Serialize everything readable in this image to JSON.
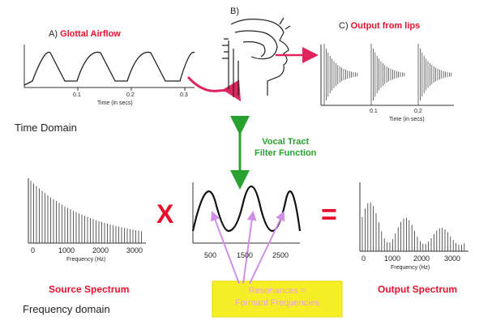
{
  "panel_a": {
    "letter": "A)",
    "title": "Glottal Airflow",
    "ticks": [
      "0.1",
      "0.2",
      "0.3"
    ],
    "xlabel": "Time (in secs)"
  },
  "panel_b": {
    "letter": "B)"
  },
  "panel_c": {
    "letter": "C)",
    "title": "Output from lips",
    "ticks": [
      "0.1",
      "0.2"
    ],
    "xlabel": "Time (in secs)"
  },
  "labels": {
    "time_domain": "Time Domain",
    "frequency_domain": "Frequency domain",
    "filter_line1": "Vocal Tract",
    "filter_line2": "Filter Function",
    "multiply": "X",
    "equals": "=",
    "source_spectrum": "Source Spectrum",
    "output_spectrum": "Output Spectrum"
  },
  "source_plot": {
    "ticks": [
      "0",
      "1000",
      "2000",
      "3000"
    ],
    "xlabel": "Frequency (Hz)"
  },
  "filter_plot": {
    "ticks": [
      "500",
      "1500",
      "2500"
    ]
  },
  "output_plot": {
    "ticks": [
      "0",
      "1000",
      "2000",
      "3000"
    ],
    "xlabel": "Frequency (Hz)"
  },
  "resonance_box": {
    "line1": "Resonances =",
    "line2": "Formant Frequencies"
  },
  "colors": {
    "title_red": "#e8112d",
    "arrow_green": "#2aa12f",
    "arrow_pink": "#e0245e",
    "box_yellow": "#f7ef26",
    "pointer_violet": "#cf8fe6"
  }
}
